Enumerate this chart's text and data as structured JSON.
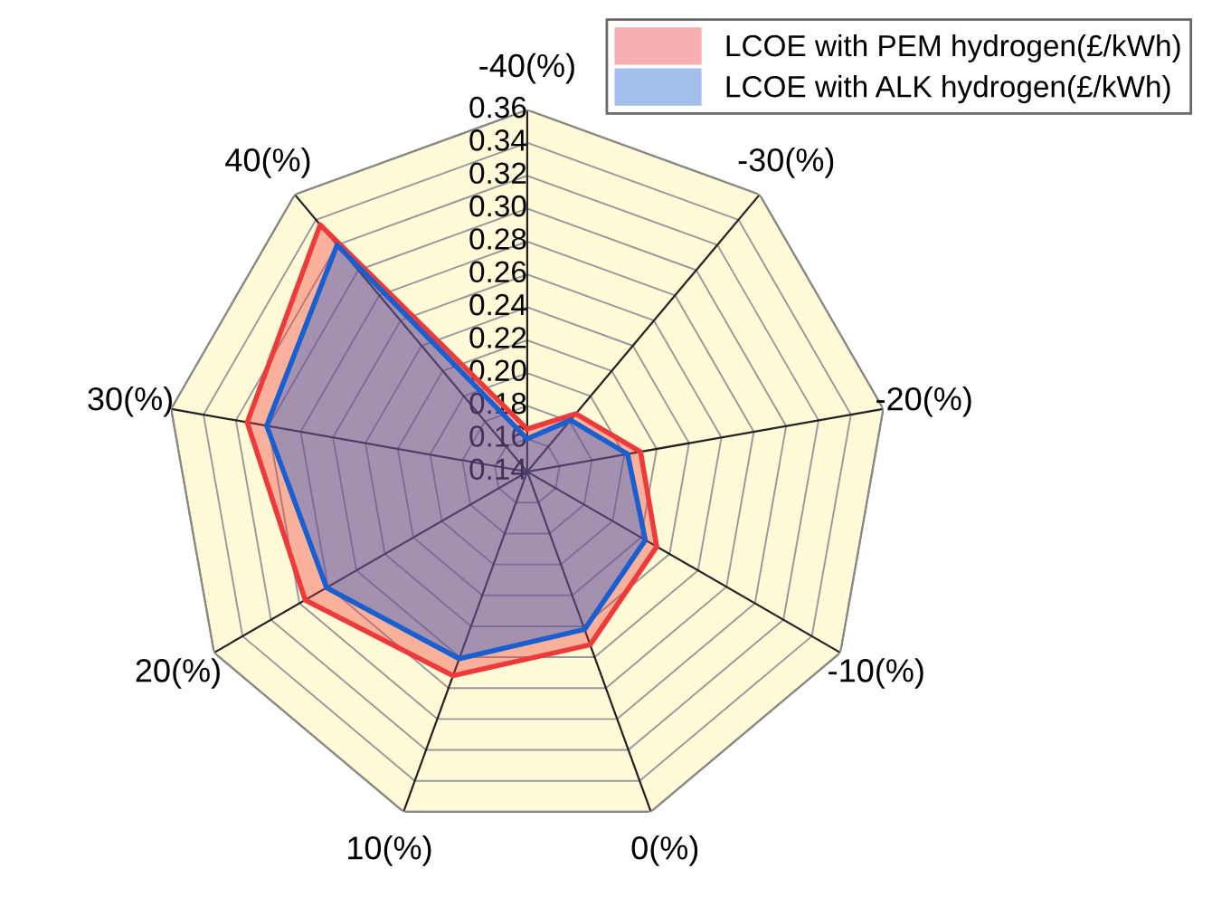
{
  "chart_data": {
    "type": "radar",
    "categories": [
      "-40(%)",
      "-30(%)",
      "-20(%)",
      "-10(%)",
      "0(%)",
      "10(%)",
      "20(%)",
      "30(%)",
      "40(%)"
    ],
    "ylim": [
      0.14,
      0.36
    ],
    "yticks": [
      {
        "value": 0.14,
        "label": "0.14"
      },
      {
        "value": 0.16,
        "label": "0.16"
      },
      {
        "value": 0.18,
        "label": "0.18"
      },
      {
        "value": 0.2,
        "label": "0.20"
      },
      {
        "value": 0.22,
        "label": "0.22"
      },
      {
        "value": 0.24,
        "label": "0.24"
      },
      {
        "value": 0.26,
        "label": "0.26"
      },
      {
        "value": 0.28,
        "label": "0.28"
      },
      {
        "value": 0.3,
        "label": "0.30"
      },
      {
        "value": 0.32,
        "label": "0.32"
      },
      {
        "value": 0.34,
        "label": "0.34"
      },
      {
        "value": 0.36,
        "label": "0.36"
      }
    ],
    "grid": true,
    "legend": "top right",
    "series": [
      {
        "name": "LCOE with PEM hydrogen(£/kWh)",
        "color": "#ee3a3a",
        "values": [
          0.166,
          0.186,
          0.21,
          0.231,
          0.252,
          0.272,
          0.296,
          0.313,
          0.336
        ]
      },
      {
        "name": "LCOE with ALK hydrogen(£/kWh)",
        "color": "#1a5fd0",
        "values": [
          0.16,
          0.181,
          0.202,
          0.223,
          0.242,
          0.261,
          0.281,
          0.301,
          0.32
        ]
      }
    ]
  }
}
